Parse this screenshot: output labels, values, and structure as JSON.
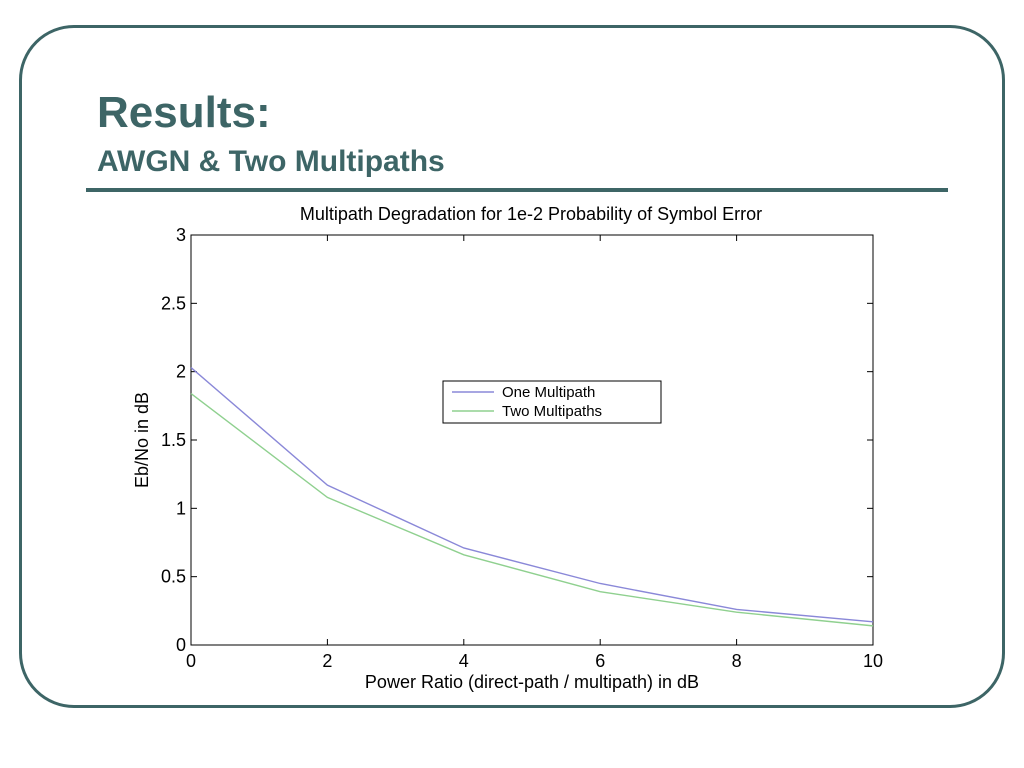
{
  "slide": {
    "title": "Results:",
    "subtitle": "AWGN & Two Multipaths",
    "frame_color": "#3d6566",
    "title_color": "#3d6566"
  },
  "chart_data": {
    "type": "line",
    "title": "Multipath Degradation for 1e-2 Probability of Symbol Error",
    "xlabel": "Power Ratio (direct-path / multipath) in dB",
    "ylabel": "Eb/No in dB",
    "x": [
      0,
      2,
      4,
      6,
      8,
      10
    ],
    "xlim": [
      0,
      10
    ],
    "ylim": [
      0,
      3
    ],
    "xticks": [
      0,
      2,
      4,
      6,
      8,
      10
    ],
    "yticks": [
      0,
      0.5,
      1,
      1.5,
      2,
      2.5,
      3
    ],
    "xtick_labels": [
      "0",
      "2",
      "4",
      "6",
      "8",
      "10"
    ],
    "ytick_labels": [
      "0",
      "0.5",
      "1",
      "1.5",
      "2",
      "2.5",
      "3"
    ],
    "grid": false,
    "legend_position": "center",
    "series": [
      {
        "name": "One Multipath",
        "color": "#8a88d8",
        "values": [
          2.03,
          1.17,
          0.71,
          0.45,
          0.26,
          0.17
        ]
      },
      {
        "name": "Two Multipaths",
        "color": "#8fd08f",
        "values": [
          1.84,
          1.08,
          0.66,
          0.39,
          0.24,
          0.14
        ]
      }
    ]
  }
}
